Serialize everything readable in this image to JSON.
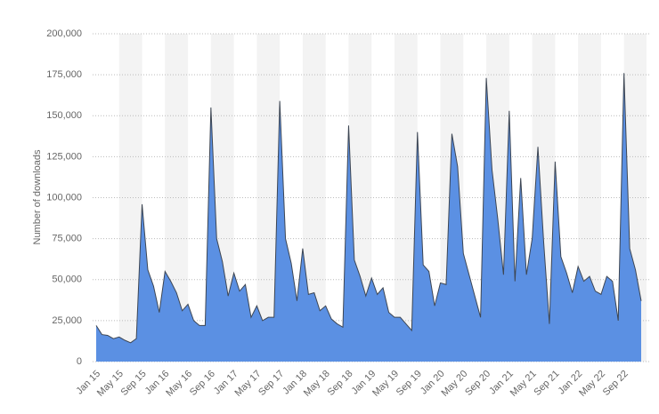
{
  "chart_data": {
    "type": "area",
    "y_label": "Number of downloads",
    "categories": [
      "Jan 15",
      null,
      null,
      null,
      "May 15",
      null,
      null,
      null,
      "Sep 15",
      null,
      null,
      null,
      "Jan 16",
      null,
      null,
      null,
      "May 16",
      null,
      null,
      null,
      "Sep 16",
      null,
      null,
      null,
      "Jan 17",
      null,
      null,
      null,
      "May 17",
      null,
      null,
      null,
      "Sep 17",
      null,
      null,
      null,
      "Jan 18",
      null,
      null,
      null,
      "May 18",
      null,
      null,
      null,
      "Sep 18",
      null,
      null,
      null,
      "Jan 19",
      null,
      null,
      null,
      "May 19",
      null,
      null,
      null,
      "Sep 19",
      null,
      null,
      null,
      "Jan 20",
      null,
      null,
      null,
      "May 20",
      null,
      null,
      null,
      "Sep 20",
      null,
      null,
      null,
      "Jan 21",
      null,
      null,
      null,
      "May 21",
      null,
      null,
      null,
      "Sep 21",
      null,
      null,
      null,
      "Jan 22",
      null,
      null,
      null,
      "May 22",
      null,
      null,
      null,
      "Sep 22",
      null,
      null,
      null
    ],
    "values": [
      22000,
      16500,
      16000,
      14000,
      15000,
      13000,
      11500,
      14000,
      96000,
      56000,
      46000,
      30000,
      55000,
      49000,
      42000,
      31000,
      35000,
      25000,
      22000,
      22000,
      155000,
      75000,
      61000,
      40000,
      54000,
      43000,
      47000,
      27000,
      34000,
      25000,
      27000,
      27000,
      159000,
      75000,
      60000,
      37000,
      69000,
      41000,
      42000,
      31000,
      34000,
      26000,
      23000,
      21000,
      144000,
      62000,
      52000,
      40000,
      51000,
      41000,
      45000,
      30000,
      27000,
      27000,
      23000,
      19000,
      140000,
      59000,
      55000,
      34000,
      48000,
      47000,
      139000,
      119000,
      66000,
      53000,
      40000,
      27000,
      173000,
      117000,
      87000,
      53000,
      153000,
      49000,
      112000,
      53000,
      75000,
      131000,
      73000,
      23000,
      122000,
      64000,
      54000,
      42000,
      58000,
      49000,
      52000,
      43000,
      41000,
      52000,
      49000,
      25000,
      176000,
      69000,
      56000,
      37000
    ],
    "color": "#5b90e3",
    "line_color": "#3d4653",
    "ylim": [
      0,
      200000
    ],
    "yticks": [
      0,
      {
        "value": 25000,
        "label": "25,000"
      },
      {
        "value": 50000,
        "label": "50,000"
      },
      {
        "value": 75000,
        "label": "75,000"
      },
      {
        "value": 100000,
        "label": "100,000"
      },
      {
        "value": 125000,
        "label": "125,000"
      },
      {
        "value": 150000,
        "label": "150,000"
      },
      {
        "value": 175000,
        "label": "175,000"
      },
      {
        "value": 200000,
        "label": "200,000"
      }
    ],
    "grid": true
  }
}
